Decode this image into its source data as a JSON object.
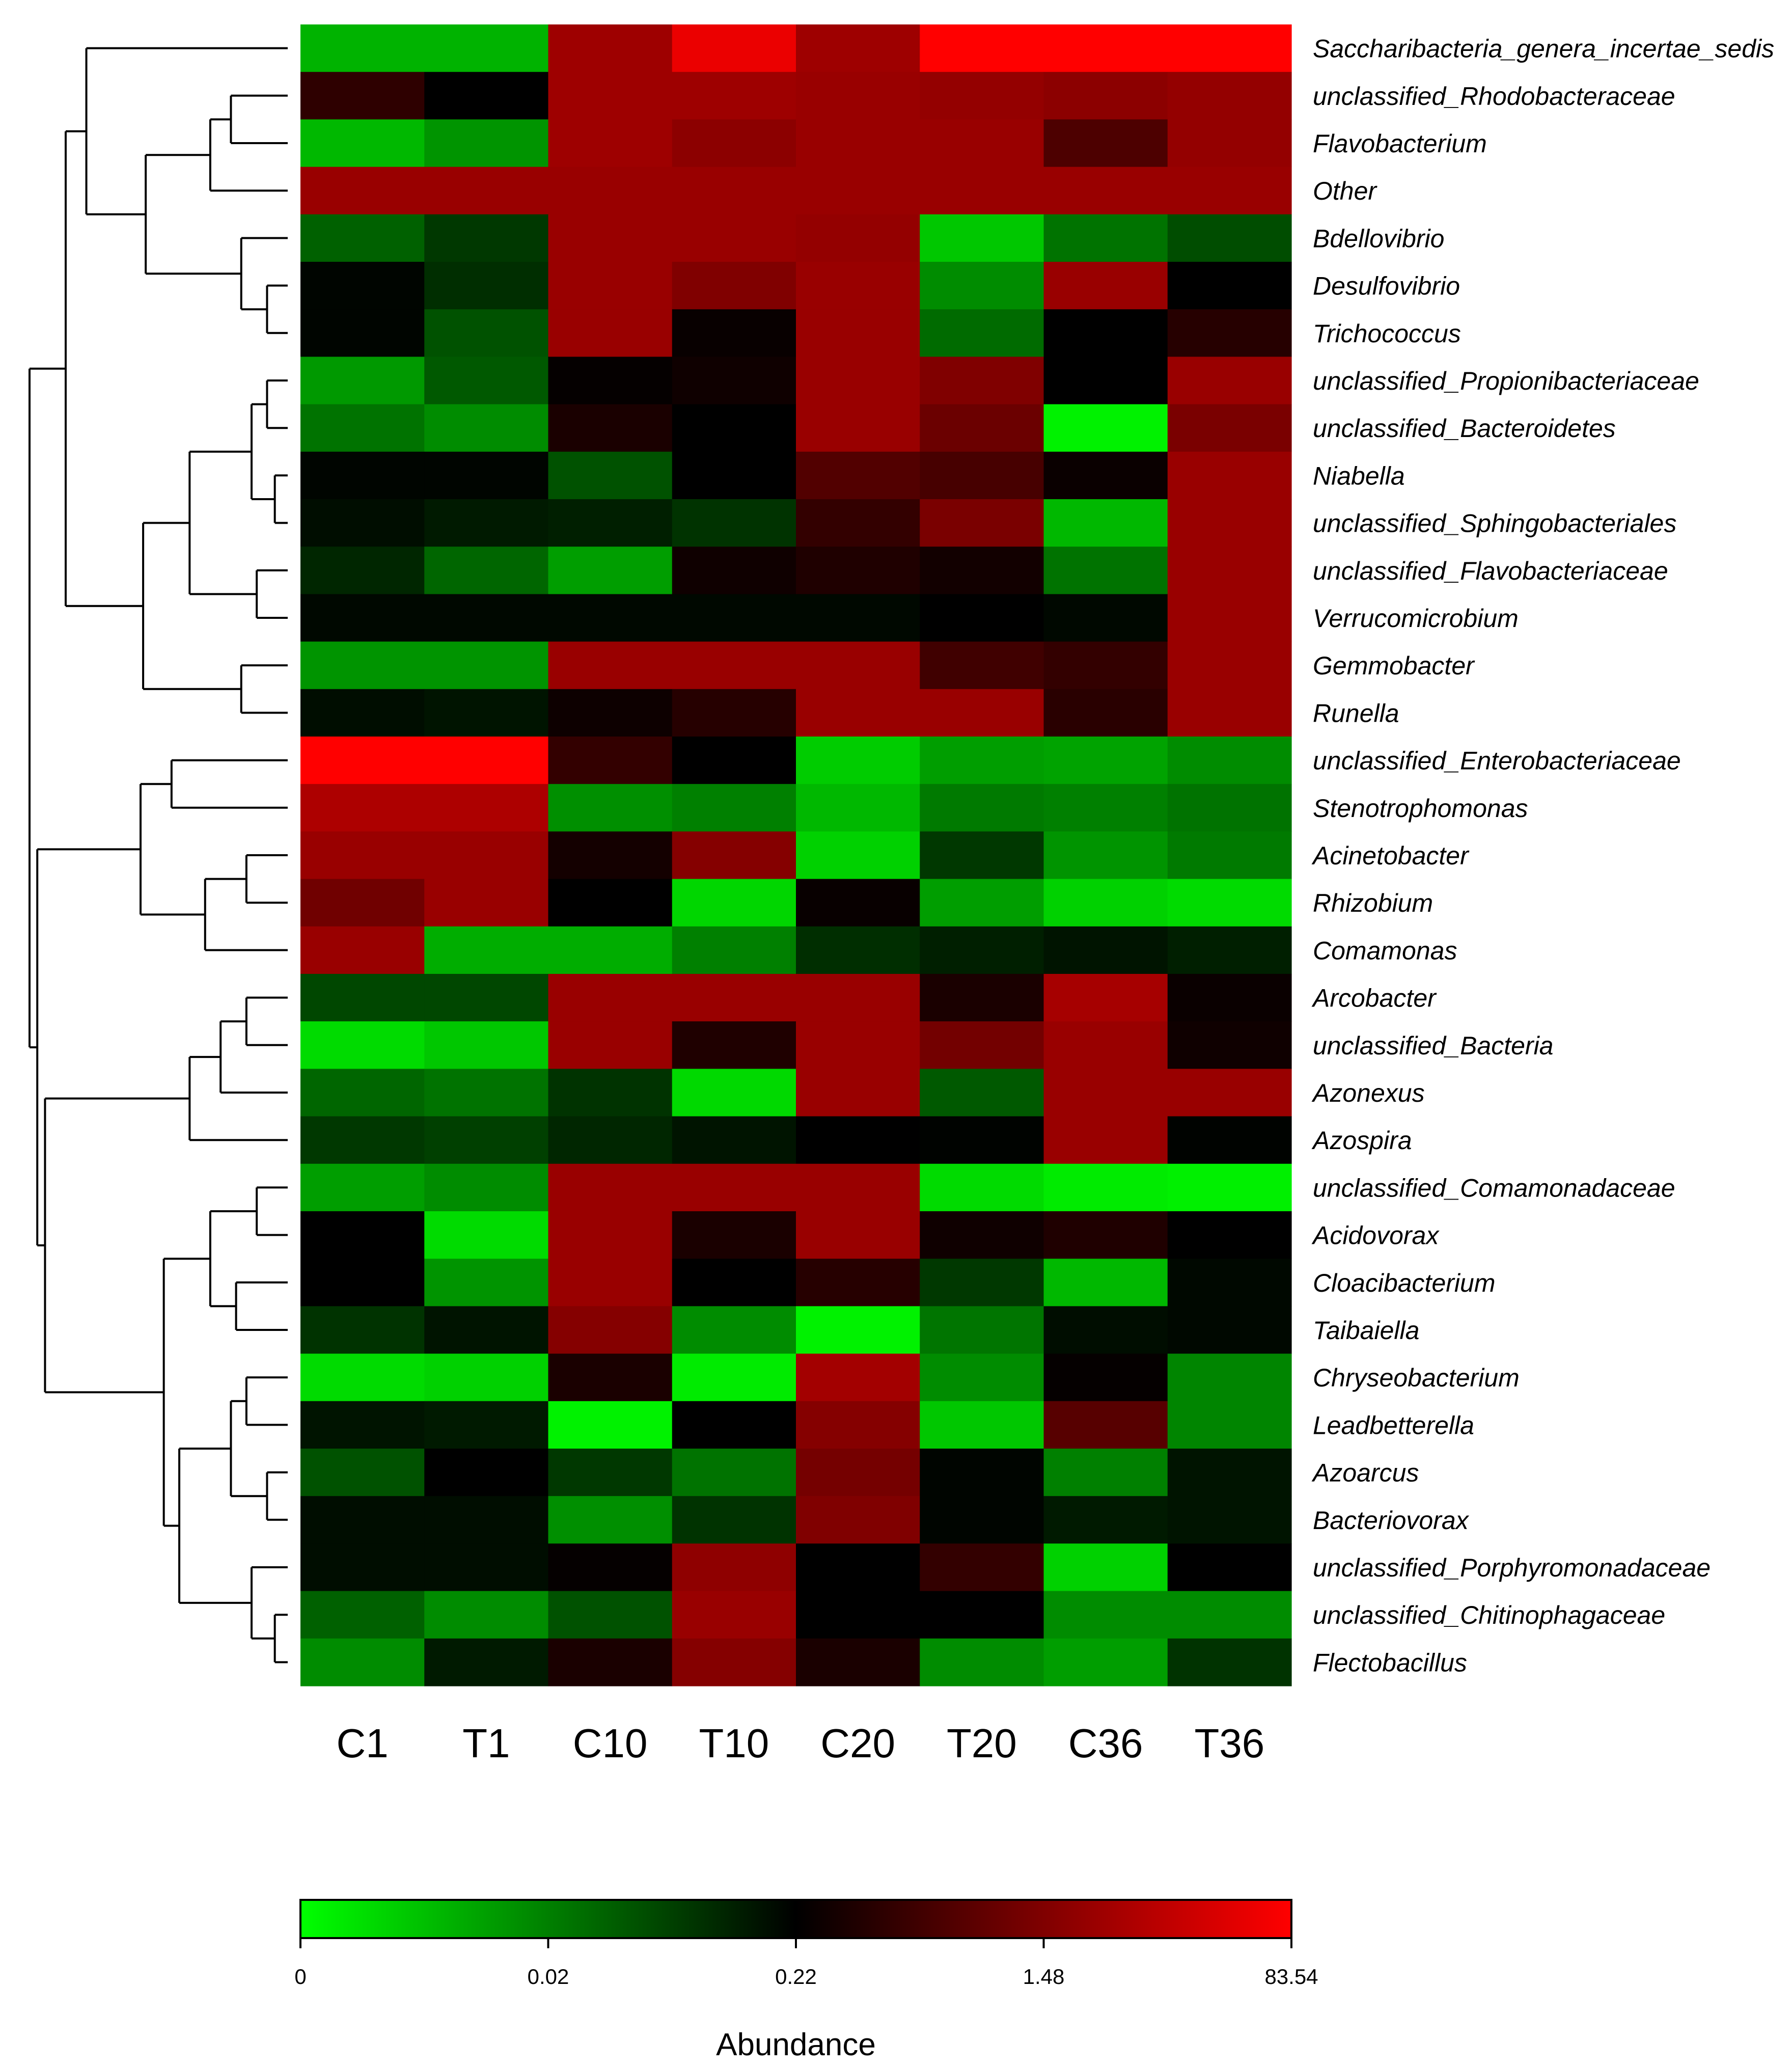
{
  "chart_data": {
    "type": "heatmap",
    "title": "",
    "samples": [
      "C1",
      "T1",
      "C10",
      "T10",
      "C20",
      "T20",
      "C36",
      "T36"
    ],
    "taxa": [
      "Saccharibacteria_genera_incertae_sedis",
      "unclassified_Rhodobacteraceae",
      "Flavobacterium",
      "Other",
      "Bdellovibrio",
      "Desulfovibrio",
      "Trichococcus",
      "unclassified_Propionibacteriaceae",
      "unclassified_Bacteroidetes",
      "Niabella",
      "unclassified_Sphingobacteriales",
      "unclassified_Flavobacteriaceae",
      "Verrucomicrobium",
      "Gemmobacter",
      "Runella",
      "unclassified_Enterobacteriaceae",
      "Stenotrophomonas",
      "Acinetobacter",
      "Rhizobium",
      "Comamonas",
      "Arcobacter",
      "unclassified_Bacteria",
      "Azonexus",
      "Azospira",
      "unclassified_Comamonadaceae",
      "Acidovorax",
      "Cloacibacterium",
      "Taibaiella",
      "Chryseobacterium",
      "Leadbetterella",
      "Azoarcus",
      "Bacteriovorax",
      "unclassified_Porphyromonadaceae",
      "unclassified_Chitinophagaceae",
      "Flectobacillus"
    ],
    "values_scaled": [
      [
        -0.7,
        -0.7,
        0.62,
        0.92,
        0.62,
        1.0,
        1.0,
        1.0
      ],
      [
        0.18,
        0.0,
        0.62,
        0.62,
        0.6,
        0.58,
        0.55,
        0.58
      ],
      [
        -0.72,
        -0.58,
        0.62,
        0.55,
        0.6,
        0.6,
        0.3,
        0.58
      ],
      [
        0.6,
        0.6,
        0.6,
        0.6,
        0.6,
        0.6,
        0.6,
        0.6
      ],
      [
        -0.38,
        -0.22,
        0.6,
        0.6,
        0.58,
        -0.78,
        -0.45,
        -0.3
      ],
      [
        -0.02,
        -0.18,
        0.6,
        0.5,
        0.6,
        -0.55,
        0.6,
        0.0
      ],
      [
        -0.02,
        -0.32,
        0.6,
        0.03,
        0.6,
        -0.42,
        0.0,
        0.15
      ],
      [
        -0.6,
        -0.35,
        0.02,
        0.06,
        0.6,
        0.5,
        0.0,
        0.6
      ],
      [
        -0.45,
        -0.55,
        0.1,
        0.0,
        0.6,
        0.42,
        -0.95,
        0.48
      ],
      [
        -0.02,
        -0.02,
        -0.32,
        0.0,
        0.32,
        0.28,
        0.04,
        0.6
      ],
      [
        -0.05,
        -0.1,
        -0.12,
        -0.2,
        0.2,
        0.48,
        -0.72,
        0.6
      ],
      [
        -0.15,
        -0.4,
        -0.62,
        0.06,
        0.12,
        0.07,
        -0.45,
        0.6
      ],
      [
        -0.03,
        -0.03,
        -0.03,
        -0.03,
        -0.03,
        0.0,
        -0.03,
        0.6
      ],
      [
        -0.58,
        -0.58,
        0.6,
        0.6,
        0.6,
        0.25,
        0.2,
        0.6
      ],
      [
        -0.05,
        -0.08,
        0.05,
        0.15,
        0.6,
        0.6,
        0.16,
        0.6
      ],
      [
        1.0,
        1.0,
        0.2,
        0.0,
        -0.8,
        -0.62,
        -0.64,
        -0.55
      ],
      [
        0.68,
        0.68,
        -0.56,
        -0.5,
        -0.72,
        -0.48,
        -0.5,
        -0.45
      ],
      [
        0.6,
        0.6,
        0.08,
        0.52,
        -0.82,
        -0.22,
        -0.58,
        -0.48
      ],
      [
        0.44,
        0.6,
        0.0,
        -0.84,
        0.03,
        -0.62,
        -0.82,
        -0.86
      ],
      [
        0.6,
        -0.68,
        -0.68,
        -0.5,
        -0.18,
        -0.12,
        -0.08,
        -0.12
      ],
      [
        -0.28,
        -0.28,
        0.6,
        0.6,
        0.6,
        0.1,
        0.65,
        0.04
      ],
      [
        -0.86,
        -0.78,
        0.6,
        0.12,
        0.6,
        0.45,
        0.6,
        0.06
      ],
      [
        -0.4,
        -0.45,
        -0.2,
        -0.85,
        0.6,
        -0.35,
        0.6,
        0.6
      ],
      [
        -0.22,
        -0.25,
        -0.15,
        -0.08,
        0.0,
        -0.01,
        0.6,
        -0.01
      ],
      [
        -0.62,
        -0.55,
        0.6,
        0.6,
        0.6,
        -0.86,
        -0.92,
        -0.94
      ],
      [
        0.0,
        -0.86,
        0.6,
        0.1,
        0.6,
        0.06,
        0.12,
        0.0
      ],
      [
        0.0,
        -0.58,
        0.6,
        0.0,
        0.15,
        -0.22,
        -0.72,
        -0.03
      ],
      [
        -0.2,
        -0.08,
        0.52,
        -0.55,
        -0.95,
        -0.46,
        -0.05,
        -0.03
      ],
      [
        -0.86,
        -0.82,
        0.1,
        -0.92,
        0.64,
        -0.55,
        0.02,
        -0.52
      ],
      [
        -0.08,
        -0.1,
        -0.95,
        0.0,
        0.52,
        -0.78,
        0.34,
        -0.52
      ],
      [
        -0.32,
        0.0,
        -0.22,
        -0.45,
        0.46,
        -0.02,
        -0.5,
        -0.08
      ],
      [
        -0.05,
        -0.05,
        -0.56,
        -0.2,
        0.5,
        -0.02,
        -0.1,
        -0.08
      ],
      [
        -0.05,
        -0.05,
        0.02,
        0.56,
        0.0,
        0.2,
        -0.82,
        0.0
      ],
      [
        -0.38,
        -0.55,
        -0.32,
        0.6,
        0.0,
        0.0,
        -0.55,
        -0.55
      ],
      [
        -0.55,
        -0.1,
        0.1,
        0.52,
        0.1,
        -0.55,
        -0.62,
        -0.2
      ]
    ],
    "color_scale": {
      "low": "#00ff00",
      "mid": "#000000",
      "high": "#ff0000",
      "tick_labels": [
        "0",
        "0.02",
        "0.22",
        "1.48",
        "83.54"
      ],
      "label": "Abundance"
    },
    "dendrogram_order": "rows clustered; leaves in displayed order"
  }
}
